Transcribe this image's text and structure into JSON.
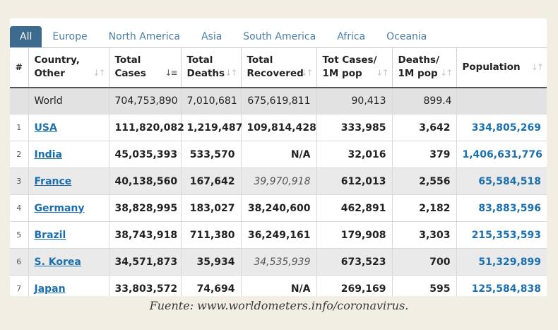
{
  "tabs": [
    "All",
    "Europe",
    "North America",
    "Asia",
    "South America",
    "Africa",
    "Oceania"
  ],
  "columns": {
    "rank": "#",
    "country_l1": "Country,",
    "country_l2": "Other",
    "cases_l1": "Total",
    "cases_l2": "Cases",
    "deaths_l1": "Total",
    "deaths_l2": "Deaths",
    "recovered_l1": "Total",
    "recovered_l2": "Recovered",
    "casesm_l1": "Tot Cases/",
    "casesm_l2": "1M pop",
    "deathsm_l1": "Deaths/",
    "deathsm_l2": "1M pop",
    "population": "Population"
  },
  "world": {
    "name": "World",
    "cases": "704,753,890",
    "deaths": "7,010,681",
    "recovered": "675,619,811",
    "cases_per_m": "90,413",
    "deaths_per_m": "899.4",
    "population": ""
  },
  "rows": [
    {
      "rank": "1",
      "country": "USA",
      "cases": "111,820,082",
      "deaths": "1,219,487",
      "recovered": "109,814,428",
      "cases_per_m": "333,985",
      "deaths_per_m": "3,642",
      "population": "334,805,269"
    },
    {
      "rank": "2",
      "country": "India",
      "cases": "45,035,393",
      "deaths": "533,570",
      "recovered": "N/A",
      "cases_per_m": "32,016",
      "deaths_per_m": "379",
      "population": "1,406,631,776"
    },
    {
      "rank": "3",
      "country": "France",
      "cases": "40,138,560",
      "deaths": "167,642",
      "recovered": "39,970,918",
      "cases_per_m": "612,013",
      "deaths_per_m": "2,556",
      "population": "65,584,518"
    },
    {
      "rank": "4",
      "country": "Germany",
      "cases": "38,828,995",
      "deaths": "183,027",
      "recovered": "38,240,600",
      "cases_per_m": "462,891",
      "deaths_per_m": "2,182",
      "population": "83,883,596"
    },
    {
      "rank": "5",
      "country": "Brazil",
      "cases": "38,743,918",
      "deaths": "711,380",
      "recovered": "36,249,161",
      "cases_per_m": "179,908",
      "deaths_per_m": "3,303",
      "population": "215,353,593"
    },
    {
      "rank": "6",
      "country": "S. Korea",
      "cases": "34,571,873",
      "deaths": "35,934",
      "recovered": "34,535,939",
      "cases_per_m": "673,523",
      "deaths_per_m": "700",
      "population": "51,329,899"
    },
    {
      "rank": "7",
      "country": "Japan",
      "cases": "33,803,572",
      "deaths": "74,694",
      "recovered": "N/A",
      "cases_per_m": "269,169",
      "deaths_per_m": "595",
      "population": "125,584,838"
    }
  ],
  "caption": "Fuente: www.worldometers.info/coronavirus.",
  "colors": {
    "accent_tab": "#3d6b8f",
    "link": "#1a6fb0",
    "tab_text": "#4a7ea8"
  }
}
